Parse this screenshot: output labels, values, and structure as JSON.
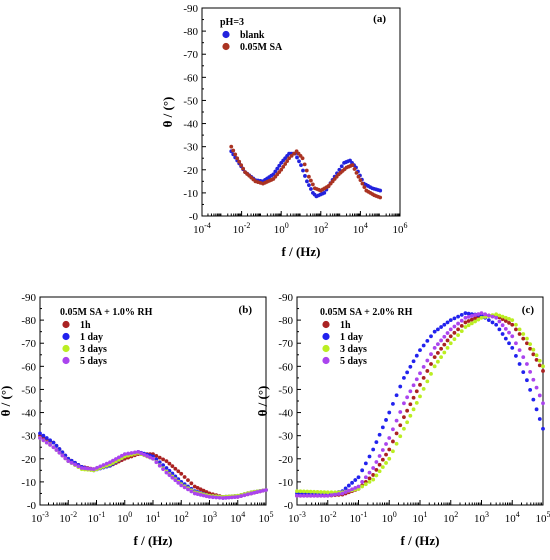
{
  "chart_data": [
    {
      "type": "scatter",
      "panel_label": "(a)",
      "legend_title": "pH=3",
      "xlabel": "f / (Hz)",
      "ylabel": "θ / (°)",
      "x_scale": "log",
      "xlim": [
        0.0001,
        1000000
      ],
      "ylim": [
        0,
        -90
      ],
      "x_tick_labels": [
        "10-4",
        "10-2",
        "100",
        "102",
        "104",
        "106"
      ],
      "y_tick_labels": [
        "-90",
        "-80",
        "-70",
        "-60",
        "-50",
        "-40",
        "-30",
        "-20",
        "-10",
        "-0"
      ],
      "series": [
        {
          "name": "blank",
          "color": "#2222dd",
          "points": [
            [
              0.003,
              -28
            ],
            [
              0.006,
              -24
            ],
            [
              0.015,
              -19
            ],
            [
              0.05,
              -15.5
            ],
            [
              0.12,
              -15
            ],
            [
              0.4,
              -18
            ],
            [
              1,
              -23
            ],
            [
              2.5,
              -27
            ],
            [
              5,
              -27
            ],
            [
              10,
              -22
            ],
            [
              20,
              -15
            ],
            [
              40,
              -10
            ],
            [
              60,
              -8.5
            ],
            [
              150,
              -10
            ],
            [
              500,
              -17
            ],
            [
              1500,
              -23
            ],
            [
              3000,
              -24
            ],
            [
              6000,
              -21
            ],
            [
              15000,
              -14
            ],
            [
              40000,
              -12
            ],
            [
              100000,
              -11
            ]
          ]
        },
        {
          "name": "0.05M SA",
          "color": "#aa3322",
          "points": [
            [
              0.003,
              -30
            ],
            [
              0.006,
              -25
            ],
            [
              0.015,
              -19
            ],
            [
              0.05,
              -15
            ],
            [
              0.12,
              -14
            ],
            [
              0.4,
              -16
            ],
            [
              1,
              -20
            ],
            [
              2.5,
              -25
            ],
            [
              6,
              -28
            ],
            [
              12,
              -25
            ],
            [
              25,
              -17
            ],
            [
              50,
              -12
            ],
            [
              100,
              -11
            ],
            [
              250,
              -13
            ],
            [
              800,
              -18
            ],
            [
              2000,
              -21
            ],
            [
              4000,
              -22
            ],
            [
              8000,
              -17
            ],
            [
              20000,
              -11
            ],
            [
              50000,
              -9
            ],
            [
              100000,
              -8
            ]
          ]
        }
      ]
    },
    {
      "type": "scatter",
      "panel_label": "(b)",
      "legend_title": "0.05M SA + 1.0% RH",
      "xlabel": "f / (Hz)",
      "ylabel": "θ / (°)",
      "x_scale": "log",
      "xlim": [
        0.001,
        100000
      ],
      "ylim": [
        0,
        -90
      ],
      "x_tick_labels": [
        "10-3",
        "10-2",
        "10-1",
        "100",
        "101",
        "102",
        "103",
        "104",
        "105"
      ],
      "y_tick_labels": [
        "-90",
        "-80",
        "-70",
        "-60",
        "-50",
        "-40",
        "-30",
        "-20",
        "-10",
        "-0"
      ],
      "series": [
        {
          "name": "1h",
          "color": "#aa2222",
          "points": [
            [
              0.001,
              -30
            ],
            [
              0.003,
              -27
            ],
            [
              0.01,
              -20
            ],
            [
              0.03,
              -16.5
            ],
            [
              0.08,
              -15.5
            ],
            [
              0.3,
              -17
            ],
            [
              1,
              -20
            ],
            [
              3,
              -22
            ],
            [
              10,
              -22
            ],
            [
              30,
              -19
            ],
            [
              100,
              -13.5
            ],
            [
              300,
              -8
            ],
            [
              1000,
              -5
            ],
            [
              3000,
              -3.5
            ],
            [
              10000,
              -3.5
            ],
            [
              30000,
              -5
            ],
            [
              100000,
              -6.5
            ]
          ]
        },
        {
          "name": "1 day",
          "color": "#2222ee",
          "points": [
            [
              0.001,
              -31
            ],
            [
              0.003,
              -27
            ],
            [
              0.01,
              -20
            ],
            [
              0.03,
              -16.5
            ],
            [
              0.08,
              -15
            ],
            [
              0.3,
              -17
            ],
            [
              1,
              -21
            ],
            [
              3,
              -23
            ],
            [
              10,
              -21
            ],
            [
              30,
              -16
            ],
            [
              100,
              -10
            ],
            [
              300,
              -6
            ],
            [
              1000,
              -4
            ],
            [
              3000,
              -3.5
            ],
            [
              10000,
              -4
            ],
            [
              30000,
              -5.5
            ],
            [
              100000,
              -6.5
            ]
          ]
        },
        {
          "name": "3 days",
          "color": "#bbee22",
          "points": [
            [
              0.001,
              -29
            ],
            [
              0.003,
              -25
            ],
            [
              0.01,
              -19
            ],
            [
              0.03,
              -15.5
            ],
            [
              0.08,
              -15
            ],
            [
              0.3,
              -17.5
            ],
            [
              1,
              -21
            ],
            [
              3,
              -22.5
            ],
            [
              10,
              -20
            ],
            [
              30,
              -14.5
            ],
            [
              100,
              -9
            ],
            [
              300,
              -5.5
            ],
            [
              1000,
              -4
            ],
            [
              3000,
              -3.5
            ],
            [
              10000,
              -4
            ],
            [
              30000,
              -5.5
            ],
            [
              100000,
              -6.5
            ]
          ]
        },
        {
          "name": "5 days",
          "color": "#aa44ee",
          "points": [
            [
              0.001,
              -29
            ],
            [
              0.003,
              -25
            ],
            [
              0.01,
              -19
            ],
            [
              0.03,
              -16
            ],
            [
              0.08,
              -15.5
            ],
            [
              0.3,
              -18.5
            ],
            [
              1,
              -22
            ],
            [
              3,
              -23
            ],
            [
              10,
              -20
            ],
            [
              30,
              -14
            ],
            [
              100,
              -8.5
            ],
            [
              300,
              -5
            ],
            [
              1000,
              -3.5
            ],
            [
              3000,
              -3
            ],
            [
              10000,
              -3.5
            ],
            [
              30000,
              -5
            ],
            [
              100000,
              -6.5
            ]
          ]
        }
      ]
    },
    {
      "type": "scatter",
      "panel_label": "(c)",
      "legend_title": "0.05M SA + 2.0% RH",
      "xlabel": "f / (Hz)",
      "ylabel": "θ / (°)",
      "x_scale": "log",
      "xlim": [
        0.001,
        100000
      ],
      "ylim": [
        0,
        -90
      ],
      "x_tick_labels": [
        "10-3",
        "10-2",
        "10-1",
        "100",
        "101",
        "102",
        "103",
        "104",
        "105"
      ],
      "y_tick_labels": [
        "-90",
        "-80",
        "-70",
        "-60",
        "-50",
        "-40",
        "-30",
        "-20",
        "-10",
        "-0"
      ],
      "series": [
        {
          "name": "1h",
          "color": "#aa2222",
          "points": [
            [
              0.001,
              -4
            ],
            [
              0.01,
              -4
            ],
            [
              0.03,
              -4.5
            ],
            [
              0.1,
              -7
            ],
            [
              0.3,
              -13
            ],
            [
              1,
              -24
            ],
            [
              3,
              -38
            ],
            [
              10,
              -52
            ],
            [
              30,
              -64
            ],
            [
              100,
              -73
            ],
            [
              300,
              -79
            ],
            [
              1000,
              -82
            ],
            [
              3000,
              -82
            ],
            [
              10000,
              -78
            ],
            [
              30000,
              -70
            ],
            [
              100000,
              -58
            ]
          ]
        },
        {
          "name": "1 day",
          "color": "#2222ee",
          "points": [
            [
              0.001,
              -5
            ],
            [
              0.01,
              -4.5
            ],
            [
              0.03,
              -6
            ],
            [
              0.1,
              -12
            ],
            [
              0.3,
              -24
            ],
            [
              1,
              -40
            ],
            [
              3,
              -55
            ],
            [
              10,
              -67
            ],
            [
              30,
              -75
            ],
            [
              100,
              -80
            ],
            [
              300,
              -83
            ],
            [
              1000,
              -82
            ],
            [
              3000,
              -78
            ],
            [
              10000,
              -68
            ],
            [
              30000,
              -54
            ],
            [
              100000,
              -33
            ]
          ]
        },
        {
          "name": "3 days",
          "color": "#bbee22",
          "points": [
            [
              0.001,
              -6
            ],
            [
              0.01,
              -5.5
            ],
            [
              0.03,
              -5.5
            ],
            [
              0.1,
              -7
            ],
            [
              0.3,
              -11
            ],
            [
              1,
              -20
            ],
            [
              3,
              -33
            ],
            [
              10,
              -47
            ],
            [
              30,
              -60
            ],
            [
              100,
              -70
            ],
            [
              300,
              -77
            ],
            [
              1000,
              -81
            ],
            [
              3000,
              -82.5
            ],
            [
              10000,
              -80
            ],
            [
              30000,
              -72
            ],
            [
              100000,
              -60
            ]
          ]
        },
        {
          "name": "5 days",
          "color": "#aa44ee",
          "points": [
            [
              0.001,
              -4
            ],
            [
              0.01,
              -4
            ],
            [
              0.03,
              -5
            ],
            [
              0.1,
              -8
            ],
            [
              0.3,
              -16
            ],
            [
              1,
              -29
            ],
            [
              3,
              -44
            ],
            [
              10,
              -57
            ],
            [
              30,
              -68
            ],
            [
              100,
              -76
            ],
            [
              300,
              -81
            ],
            [
              1000,
              -83
            ],
            [
              3000,
              -81
            ],
            [
              10000,
              -73
            ],
            [
              30000,
              -61
            ],
            [
              100000,
              -44
            ]
          ]
        }
      ]
    }
  ]
}
